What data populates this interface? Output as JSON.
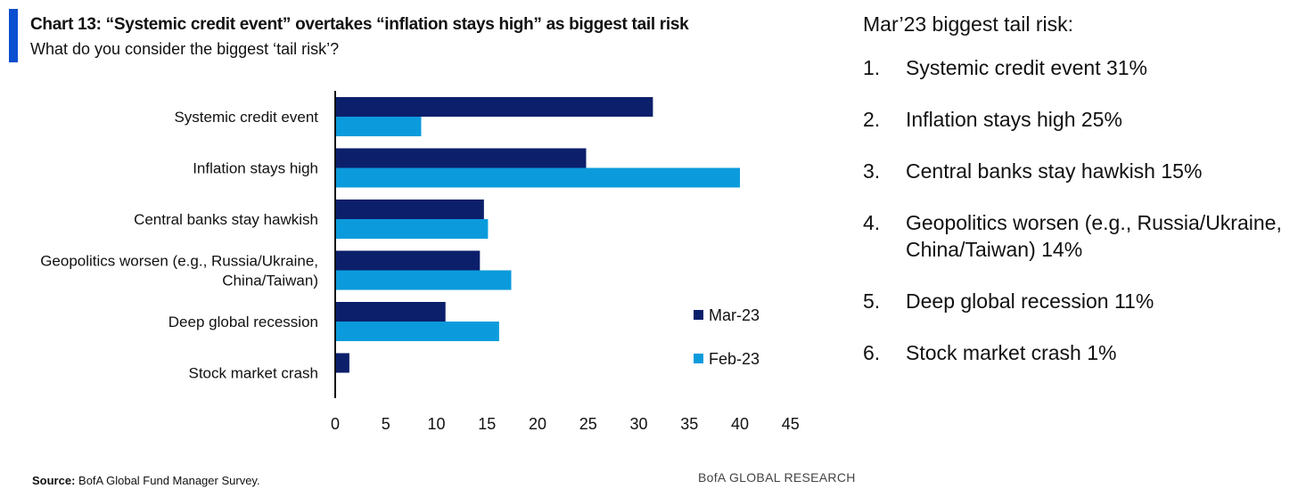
{
  "header": {
    "title": "Chart 13: “Systemic credit event” overtakes “inflation stays high” as biggest tail risk",
    "subtitle": "What do you consider the biggest ‘tail risk’?"
  },
  "chart_data": {
    "type": "bar",
    "orientation": "horizontal",
    "title": "Chart 13: “Systemic credit event” overtakes “inflation stays high” as biggest tail risk",
    "subtitle": "What do you consider the biggest ‘tail risk’?",
    "categories": [
      "Systemic credit event",
      "Inflation stays high",
      "Central banks stay hawkish",
      "Geopolitics worsen (e.g., Russia/Ukraine, China/Taiwan)",
      "Deep global recession",
      "Stock market crash"
    ],
    "category_lines": [
      [
        "Systemic credit event"
      ],
      [
        "Inflation stays high"
      ],
      [
        "Central banks stay hawkish"
      ],
      [
        "Geopolitics worsen (e.g., Russia/Ukraine,",
        "China/Taiwan)"
      ],
      [
        "Deep global recession"
      ],
      [
        "Stock market crash"
      ]
    ],
    "series": [
      {
        "name": "Mar-23",
        "color": "#0c1f6b",
        "values": [
          31.4,
          24.8,
          14.7,
          14.3,
          10.9,
          1.4
        ]
      },
      {
        "name": "Feb-23",
        "color": "#0b9bdc",
        "values": [
          8.5,
          40,
          15.1,
          17.4,
          16.2,
          0
        ]
      }
    ],
    "xlim": [
      0,
      45
    ],
    "xticks": [
      "0",
      "5",
      "10",
      "15",
      "20",
      "25",
      "30",
      "35",
      "40",
      "45"
    ],
    "legend_position": "right",
    "grid": false
  },
  "footer": {
    "source_label": "Source:",
    "source_text": "BofA Global Fund Manager Survey.",
    "brand": "BofA GLOBAL RESEARCH"
  },
  "side_panel": {
    "title": "Mar’23 biggest tail risk:",
    "items": [
      {
        "num": "1.",
        "text": "Systemic credit event 31%"
      },
      {
        "num": "2.",
        "text": "Inflation stays high 25%"
      },
      {
        "num": "3.",
        "text": "Central banks stay hawkish 15%"
      },
      {
        "num": "4.",
        "text": "Geopolitics worsen (e.g., Russia/Ukraine, China/Taiwan) 14%"
      },
      {
        "num": "5.",
        "text": "Deep global recession 11%"
      },
      {
        "num": "6.",
        "text": "Stock market crash 1%"
      }
    ]
  }
}
